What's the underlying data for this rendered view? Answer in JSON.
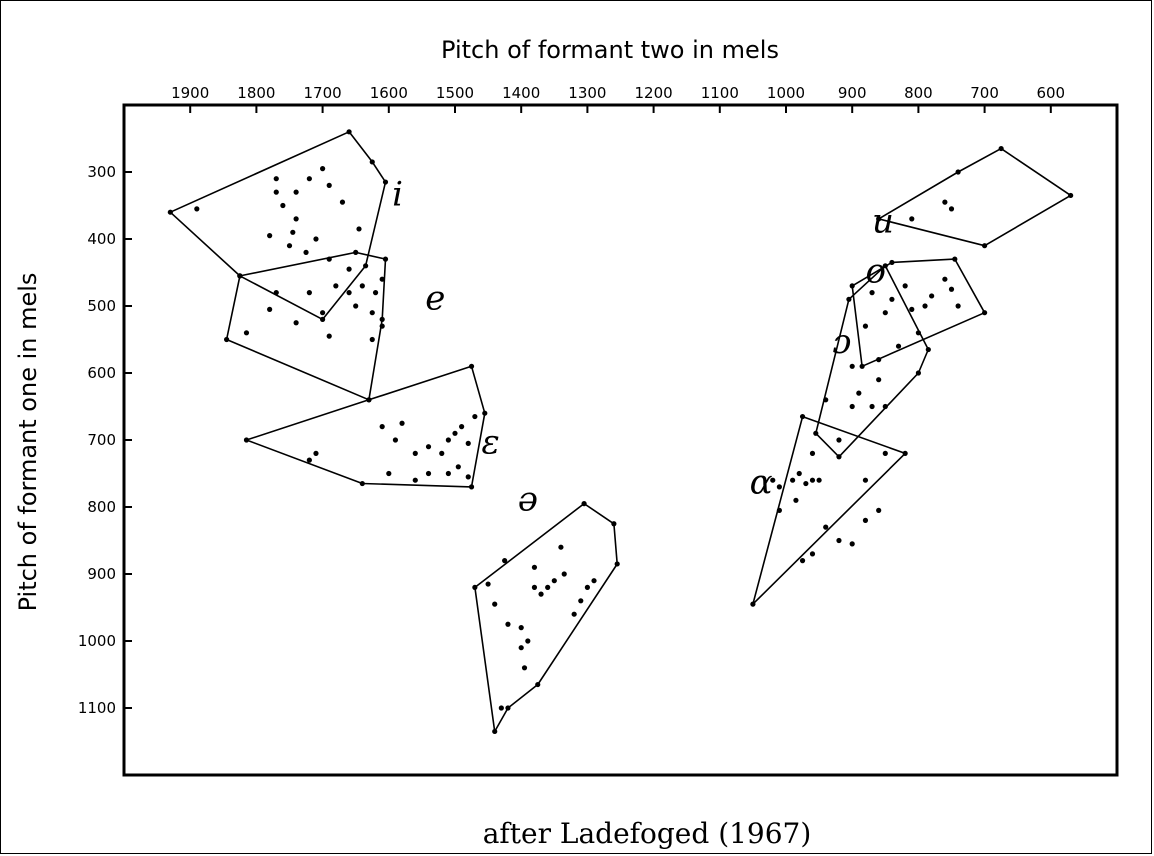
{
  "chart_data": {
    "type": "scatter",
    "xlabel": "Pitch of formant two  in mels",
    "ylabel": "Pitch of formant one  in mels",
    "caption": "after Ladefoged (1967)",
    "x_axis": {
      "range": [
        2000,
        500
      ],
      "reversed": true,
      "position": "top",
      "ticks": [
        1900,
        1800,
        1700,
        1600,
        1500,
        1400,
        1300,
        1200,
        1100,
        1000,
        900,
        800,
        700,
        600
      ]
    },
    "y_axis": {
      "range": [
        200,
        1200
      ],
      "reversed": true,
      "ticks": [
        300,
        400,
        500,
        600,
        700,
        800,
        900,
        1000,
        1100
      ]
    },
    "grid": false,
    "series": [
      {
        "name": "i",
        "label_pos": [
          1595,
          350
        ],
        "hull": [
          [
            1930,
            360
          ],
          [
            1660,
            240
          ],
          [
            1625,
            285
          ],
          [
            1605,
            315
          ],
          [
            1635,
            440
          ],
          [
            1700,
            520
          ],
          [
            1825,
            455
          ]
        ],
        "points": [
          [
            1890,
            355
          ],
          [
            1770,
            330
          ],
          [
            1760,
            350
          ],
          [
            1740,
            330
          ],
          [
            1780,
            395
          ],
          [
            1750,
            410
          ],
          [
            1720,
            310
          ],
          [
            1700,
            295
          ],
          [
            1690,
            320
          ],
          [
            1740,
            370
          ],
          [
            1710,
            400
          ],
          [
            1670,
            345
          ],
          [
            1690,
            430
          ],
          [
            1645,
            385
          ],
          [
            1770,
            310
          ],
          [
            1745,
            390
          ],
          [
            1725,
            420
          ]
        ]
      },
      {
        "name": "e",
        "label_pos": [
          1545,
          505
        ],
        "hull": [
          [
            1825,
            455
          ],
          [
            1650,
            420
          ],
          [
            1605,
            430
          ],
          [
            1610,
            520
          ],
          [
            1630,
            640
          ],
          [
            1845,
            550
          ]
        ],
        "points": [
          [
            1815,
            540
          ],
          [
            1780,
            505
          ],
          [
            1770,
            480
          ],
          [
            1720,
            480
          ],
          [
            1700,
            510
          ],
          [
            1680,
            470
          ],
          [
            1660,
            480
          ],
          [
            1650,
            500
          ],
          [
            1640,
            470
          ],
          [
            1620,
            480
          ],
          [
            1610,
            460
          ],
          [
            1625,
            510
          ],
          [
            1610,
            530
          ],
          [
            1625,
            550
          ],
          [
            1740,
            525
          ],
          [
            1660,
            445
          ],
          [
            1690,
            545
          ]
        ]
      },
      {
        "name": "ɛ",
        "label_pos": [
          1460,
          720
        ],
        "hull": [
          [
            1815,
            700
          ],
          [
            1640,
            765
          ],
          [
            1475,
            770
          ],
          [
            1455,
            660
          ],
          [
            1475,
            590
          ],
          [
            1630,
            640
          ]
        ],
        "points": [
          [
            1720,
            730
          ],
          [
            1710,
            720
          ],
          [
            1610,
            680
          ],
          [
            1590,
            700
          ],
          [
            1580,
            675
          ],
          [
            1560,
            720
          ],
          [
            1540,
            710
          ],
          [
            1520,
            720
          ],
          [
            1510,
            700
          ],
          [
            1500,
            690
          ],
          [
            1490,
            680
          ],
          [
            1480,
            705
          ],
          [
            1495,
            740
          ],
          [
            1470,
            665
          ],
          [
            1600,
            750
          ],
          [
            1560,
            760
          ],
          [
            1540,
            750
          ],
          [
            1510,
            750
          ],
          [
            1480,
            755
          ]
        ]
      },
      {
        "name": "ə",
        "label_pos": [
          1405,
          805
        ],
        "hull": [
          [
            1470,
            920
          ],
          [
            1305,
            795
          ],
          [
            1260,
            825
          ],
          [
            1255,
            885
          ],
          [
            1375,
            1065
          ],
          [
            1420,
            1100
          ],
          [
            1440,
            1135
          ]
        ],
        "points": [
          [
            1450,
            915
          ],
          [
            1440,
            945
          ],
          [
            1425,
            880
          ],
          [
            1420,
            975
          ],
          [
            1400,
            980
          ],
          [
            1395,
            1040
          ],
          [
            1390,
            1000
          ],
          [
            1380,
            920
          ],
          [
            1370,
            930
          ],
          [
            1360,
            920
          ],
          [
            1350,
            910
          ],
          [
            1340,
            860
          ],
          [
            1335,
            900
          ],
          [
            1320,
            960
          ],
          [
            1310,
            940
          ],
          [
            1300,
            920
          ],
          [
            1290,
            910
          ],
          [
            1400,
            1010
          ],
          [
            1430,
            1100
          ],
          [
            1380,
            890
          ]
        ]
      },
      {
        "name": "u",
        "label_pos": [
          870,
          390
        ],
        "hull": [
          [
            860,
            370
          ],
          [
            740,
            300
          ],
          [
            675,
            265
          ],
          [
            570,
            335
          ],
          [
            700,
            410
          ]
        ],
        "points": [
          [
            810,
            370
          ],
          [
            750,
            355
          ],
          [
            760,
            345
          ]
        ]
      },
      {
        "name": "o",
        "label_pos": [
          880,
          465
        ],
        "hull": [
          [
            900,
            470
          ],
          [
            840,
            435
          ],
          [
            745,
            430
          ],
          [
            700,
            510
          ],
          [
            885,
            590
          ]
        ],
        "points": [
          [
            870,
            480
          ],
          [
            850,
            510
          ],
          [
            840,
            490
          ],
          [
            820,
            470
          ],
          [
            810,
            505
          ],
          [
            790,
            500
          ],
          [
            780,
            485
          ],
          [
            760,
            460
          ],
          [
            750,
            475
          ],
          [
            740,
            500
          ],
          [
            880,
            530
          ],
          [
            830,
            560
          ],
          [
            800,
            540
          ]
        ]
      },
      {
        "name": "ɔ",
        "label_pos": [
          930,
          570
        ],
        "hull": [
          [
            905,
            490
          ],
          [
            850,
            440
          ],
          [
            785,
            565
          ],
          [
            800,
            600
          ],
          [
            920,
            725
          ],
          [
            955,
            690
          ]
        ],
        "points": [
          [
            860,
            610
          ],
          [
            870,
            650
          ],
          [
            900,
            650
          ],
          [
            890,
            630
          ],
          [
            850,
            650
          ],
          [
            920,
            700
          ],
          [
            940,
            640
          ],
          [
            900,
            590
          ],
          [
            860,
            580
          ]
        ]
      },
      {
        "name": "ɑ",
        "label_pos": [
          1055,
          780
        ],
        "hull": [
          [
            1050,
            945
          ],
          [
            975,
            665
          ],
          [
            820,
            720
          ]
        ],
        "points": [
          [
            1020,
            760
          ],
          [
            1010,
            770
          ],
          [
            990,
            760
          ],
          [
            980,
            750
          ],
          [
            970,
            765
          ],
          [
            960,
            760
          ],
          [
            950,
            760
          ],
          [
            960,
            720
          ],
          [
            1010,
            805
          ],
          [
            985,
            790
          ],
          [
            920,
            850
          ],
          [
            900,
            855
          ],
          [
            880,
            820
          ],
          [
            860,
            805
          ],
          [
            940,
            830
          ],
          [
            850,
            720
          ],
          [
            880,
            760
          ],
          [
            975,
            880
          ],
          [
            960,
            870
          ]
        ]
      }
    ]
  }
}
